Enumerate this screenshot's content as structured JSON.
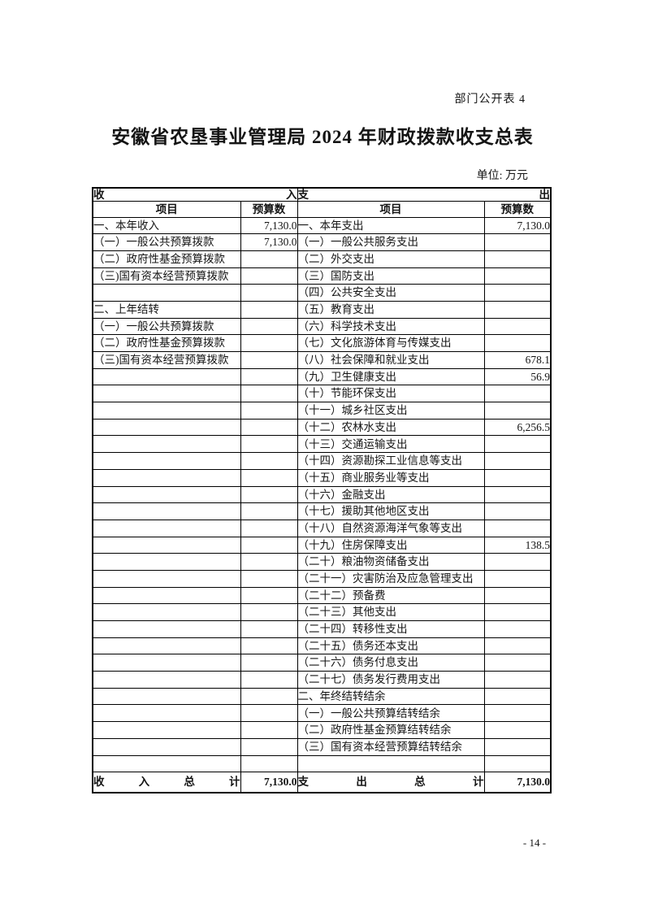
{
  "page": {
    "doc_label": "部门公开表 4",
    "title": "安徽省农垦事业管理局 2024 年财政拨款收支总表",
    "unit_label": "单位: 万元",
    "page_number": "- 14 -"
  },
  "table": {
    "income_section_header": "收入",
    "expense_section_header": "支出",
    "income_item_header": "项目",
    "income_budget_header": "预算数",
    "expense_item_header": "项目",
    "expense_budget_header": "预算数",
    "rows": [
      {
        "income_item": "一、本年收入",
        "income_value": "7,130.0",
        "expense_item": "一、本年支出",
        "expense_value": "7,130.0"
      },
      {
        "income_item": "（一）一般公共预算拨款",
        "income_value": "7,130.0",
        "expense_item": "（一）一般公共服务支出",
        "expense_value": ""
      },
      {
        "income_item": "（二）政府性基金预算拨款",
        "income_value": "",
        "expense_item": "（二）外交支出",
        "expense_value": ""
      },
      {
        "income_item": "（三)国有资本经营预算拨款",
        "income_value": "",
        "expense_item": "（三）国防支出",
        "expense_value": ""
      },
      {
        "income_item": "",
        "income_value": "",
        "expense_item": "（四）公共安全支出",
        "expense_value": ""
      },
      {
        "income_item": "二、上年结转",
        "income_value": "",
        "expense_item": "（五）教育支出",
        "expense_value": ""
      },
      {
        "income_item": "（一）一般公共预算拨款",
        "income_value": "",
        "expense_item": "（六）科学技术支出",
        "expense_value": ""
      },
      {
        "income_item": "（二）政府性基金预算拨款",
        "income_value": "",
        "expense_item": "（七）文化旅游体育与传媒支出",
        "expense_value": ""
      },
      {
        "income_item": "（三)国有资本经营预算拨款",
        "income_value": "",
        "expense_item": "（八）社会保障和就业支出",
        "expense_value": "678.1"
      },
      {
        "income_item": "",
        "income_value": "",
        "expense_item": "（九）卫生健康支出",
        "expense_value": "56.9"
      },
      {
        "income_item": "",
        "income_value": "",
        "expense_item": "（十）节能环保支出",
        "expense_value": ""
      },
      {
        "income_item": "",
        "income_value": "",
        "expense_item": "（十一）城乡社区支出",
        "expense_value": ""
      },
      {
        "income_item": "",
        "income_value": "",
        "expense_item": "（十二）农林水支出",
        "expense_value": "6,256.5"
      },
      {
        "income_item": "",
        "income_value": "",
        "expense_item": "（十三）交通运输支出",
        "expense_value": ""
      },
      {
        "income_item": "",
        "income_value": "",
        "expense_item": "（十四）资源勘探工业信息等支出",
        "expense_value": ""
      },
      {
        "income_item": "",
        "income_value": "",
        "expense_item": "（十五）商业服务业等支出",
        "expense_value": ""
      },
      {
        "income_item": "",
        "income_value": "",
        "expense_item": "（十六）金融支出",
        "expense_value": ""
      },
      {
        "income_item": "",
        "income_value": "",
        "expense_item": "（十七）援助其他地区支出",
        "expense_value": ""
      },
      {
        "income_item": "",
        "income_value": "",
        "expense_item": "（十八）自然资源海洋气象等支出",
        "expense_value": ""
      },
      {
        "income_item": "",
        "income_value": "",
        "expense_item": "（十九）住房保障支出",
        "expense_value": "138.5"
      },
      {
        "income_item": "",
        "income_value": "",
        "expense_item": "（二十）粮油物资储备支出",
        "expense_value": ""
      },
      {
        "income_item": "",
        "income_value": "",
        "expense_item": "（二十一）灾害防治及应急管理支出",
        "expense_value": ""
      },
      {
        "income_item": "",
        "income_value": "",
        "expense_item": "（二十二）预备费",
        "expense_value": ""
      },
      {
        "income_item": "",
        "income_value": "",
        "expense_item": "（二十三）其他支出",
        "expense_value": ""
      },
      {
        "income_item": "",
        "income_value": "",
        "expense_item": "（二十四）转移性支出",
        "expense_value": ""
      },
      {
        "income_item": "",
        "income_value": "",
        "expense_item": "（二十五）债务还本支出",
        "expense_value": ""
      },
      {
        "income_item": "",
        "income_value": "",
        "expense_item": "（二十六）债务付息支出",
        "expense_value": ""
      },
      {
        "income_item": "",
        "income_value": "",
        "expense_item": "（二十七）债务发行费用支出",
        "expense_value": ""
      },
      {
        "income_item": "",
        "income_value": "",
        "expense_item": "二、年终结转结余",
        "expense_value": ""
      },
      {
        "income_item": "",
        "income_value": "",
        "expense_item": "（一）一般公共预算结转结余",
        "expense_value": ""
      },
      {
        "income_item": "",
        "income_value": "",
        "expense_item": "（二）政府性基金预算结转结余",
        "expense_value": ""
      },
      {
        "income_item": "",
        "income_value": "",
        "expense_item": "（三）国有资本经营预算结转结余",
        "expense_value": ""
      },
      {
        "income_item": "",
        "income_value": "",
        "expense_item": "",
        "expense_value": ""
      }
    ],
    "total_row": {
      "income_label": "收入总计",
      "income_value": "7,130.0",
      "expense_label": "支出总计",
      "expense_value": "7,130.0"
    }
  }
}
